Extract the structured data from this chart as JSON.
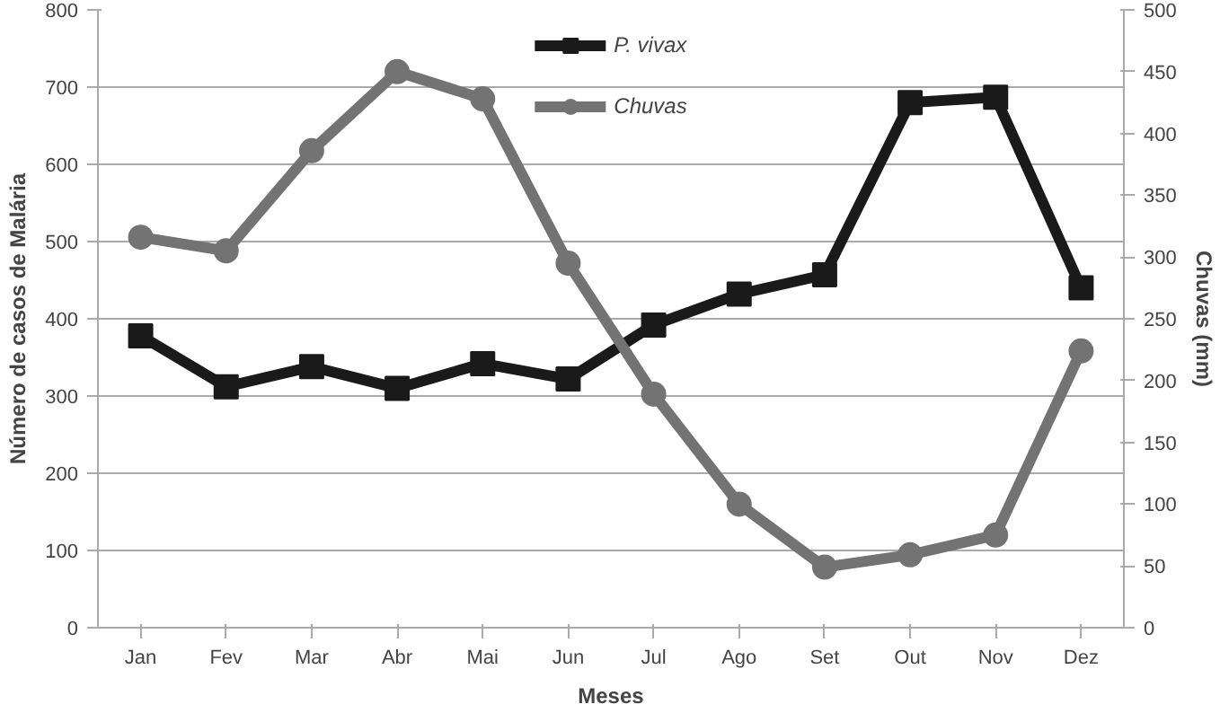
{
  "chart_data": {
    "type": "line",
    "xlabel": "Meses",
    "ylabel": "Número de casos de Malária",
    "y2label": "Chuvas (mm)",
    "categories": [
      "Jan",
      "Fev",
      "Mar",
      "Abr",
      "Mai",
      "Jun",
      "Jul",
      "Ago",
      "Set",
      "Out",
      "Nov",
      "Dez"
    ],
    "series": [
      {
        "name": "P. vivax",
        "color": "#1a1a1a",
        "marker": "square",
        "values": [
          378,
          312,
          338,
          310,
          342,
          322,
          392,
          432,
          457,
          680,
          687,
          440
        ]
      },
      {
        "name": "Chuvas",
        "color": "#737373",
        "marker": "circle",
        "axis": "y2",
        "values": [
          316,
          305,
          386,
          450,
          428,
          295,
          189,
          100,
          49,
          59,
          75,
          224
        ]
      }
    ],
    "ylim": [
      0,
      800
    ],
    "yticks": [
      0,
      100,
      200,
      300,
      400,
      500,
      600,
      700,
      800
    ],
    "y2lim": [
      0,
      500
    ],
    "y2ticks": [
      0,
      50,
      100,
      150,
      200,
      250,
      300,
      350,
      400,
      450,
      500
    ],
    "grid": "y",
    "legend": "top",
    "line_style": "solid"
  }
}
